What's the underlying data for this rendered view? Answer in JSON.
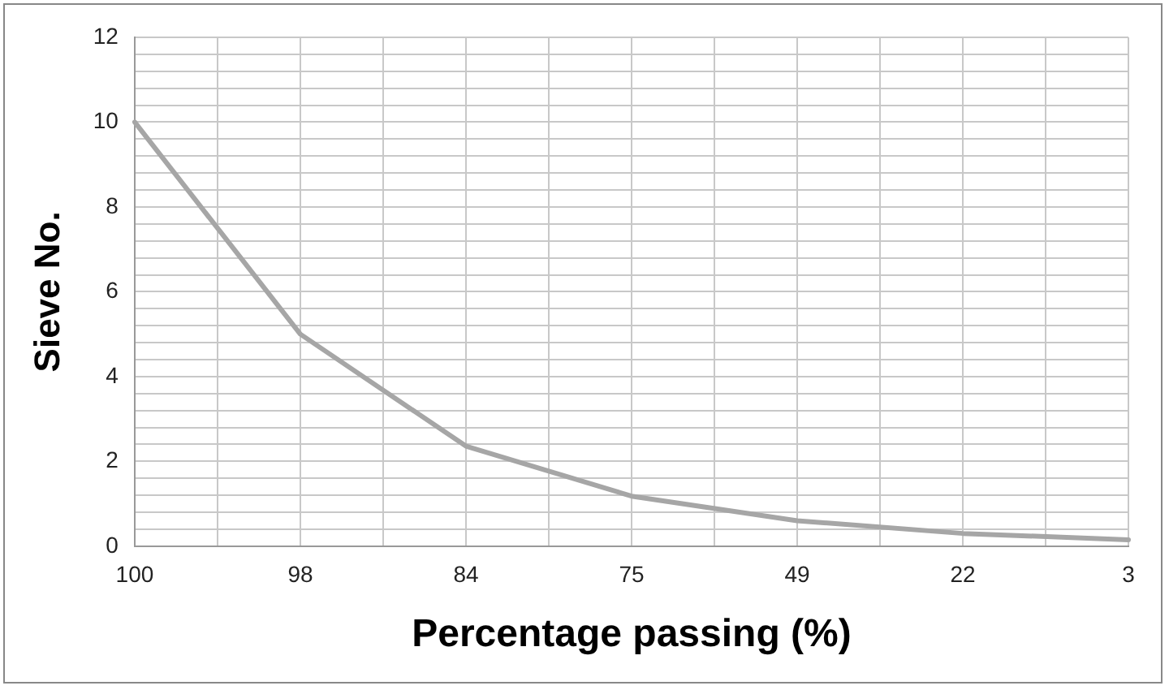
{
  "chart_data": {
    "type": "line",
    "xlabel": "Percentage passing (%)",
    "ylabel": "Sieve No.",
    "categories": [
      "100",
      "98",
      "84",
      "75",
      "49",
      "22",
      "3"
    ],
    "series": [
      {
        "color": "#a6a6a6",
        "values": [
          10,
          5,
          2.36,
          1.18,
          0.6,
          0.3,
          0.15
        ]
      }
    ],
    "ylim": [
      0,
      12
    ],
    "yticks": [
      0,
      {
        "value": 0.4,
        "label": null
      },
      {
        "value": 0.8,
        "label": null
      },
      {
        "value": 1.2,
        "label": null
      },
      {
        "value": 1.6,
        "label": null
      },
      2,
      {
        "value": 2.4,
        "label": null
      },
      {
        "value": 2.8,
        "label": null
      },
      {
        "value": 3.2,
        "label": null
      },
      {
        "value": 3.6,
        "label": null
      },
      4,
      {
        "value": 4.4,
        "label": null
      },
      {
        "value": 4.8,
        "label": null
      },
      {
        "value": 5.2,
        "label": null
      },
      {
        "value": 5.6,
        "label": null
      },
      6,
      {
        "value": 6.4,
        "label": null
      },
      {
        "value": 6.8,
        "label": null
      },
      {
        "value": 7.2,
        "label": null
      },
      {
        "value": 7.6,
        "label": null
      },
      8,
      {
        "value": 8.4,
        "label": null
      },
      {
        "value": 8.8,
        "label": null
      },
      {
        "value": 9.2,
        "label": null
      },
      {
        "value": 9.6,
        "label": null
      },
      10,
      {
        "value": 10.4,
        "label": null
      },
      {
        "value": 10.8,
        "label": null
      },
      {
        "value": 11.2,
        "label": null
      },
      {
        "value": 11.6,
        "label": null
      },
      12
    ],
    "grid": true,
    "legend": false,
    "marker": "none",
    "line_style": "solid"
  }
}
